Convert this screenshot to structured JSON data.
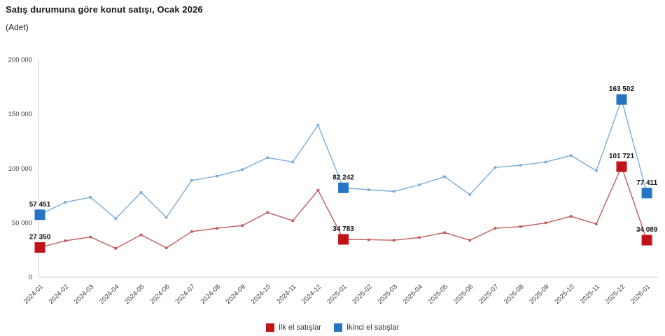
{
  "header": {
    "title": "Satış durumuna göre konut satışı, Ocak 2026",
    "subtitle": "(Adet)"
  },
  "colors": {
    "first_hand_line": "#c25b5b",
    "first_hand_marker": "#bf1317",
    "second_hand_line": "#7bacd9",
    "second_hand_marker": "#2575c4",
    "axis_line": "#d0d0d0",
    "tick_text": "#3a3a3a",
    "data_label_text": "#111111"
  },
  "legend": {
    "items": [
      {
        "label": "İlk el satışlar",
        "color": "#bf1317"
      },
      {
        "label": "İkinci el satışlar",
        "color": "#2575c4"
      }
    ]
  },
  "chart_data": {
    "type": "line",
    "title": "Satış durumuna göre konut satışı, Ocak 2026",
    "ylabel": "Adet",
    "xlabel": "",
    "ylim": [
      0,
      200000
    ],
    "grid": false,
    "legend_position": "bottom",
    "ytick_values": [
      0,
      50000,
      100000,
      150000,
      200000
    ],
    "ytick_labels": [
      "0",
      "50 000",
      "100 000",
      "150 000",
      "200 000"
    ],
    "categories": [
      "2024-01",
      "2024-02",
      "2024-03",
      "2024-04",
      "2024-05",
      "2024-06",
      "2024-07",
      "2024-08",
      "2024-09",
      "2024-10",
      "2024-11",
      "2024-12",
      "2025-01",
      "2025-02",
      "2025-03",
      "2025-04",
      "2025-05",
      "2025-06",
      "2025-07",
      "2025-08",
      "2025-09",
      "2025-10",
      "2025-11",
      "2025-12",
      "2026-01"
    ],
    "labeled_indices": [
      0,
      12,
      23,
      24
    ],
    "series": [
      {
        "name": "İlk el satışlar",
        "line_color": "#c25b5b",
        "marker_color": "#bf1317",
        "values": [
          27350,
          33500,
          37000,
          26500,
          39000,
          27000,
          42000,
          45000,
          47500,
          59500,
          52000,
          80000,
          34783,
          34500,
          34000,
          36500,
          41000,
          34000,
          45000,
          46500,
          50000,
          56000,
          49000,
          101721,
          34089
        ],
        "labeled_values": [
          "27 350",
          "34 783",
          "101 721",
          "34 089"
        ]
      },
      {
        "name": "İkinci el satışlar",
        "line_color": "#7bacd9",
        "marker_color": "#2575c4",
        "values": [
          57451,
          69000,
          73500,
          54000,
          78000,
          55000,
          89000,
          93000,
          99000,
          110000,
          106000,
          140000,
          82242,
          80500,
          79000,
          85000,
          92500,
          76000,
          101000,
          103000,
          106000,
          112000,
          98000,
          163502,
          77411
        ],
        "labeled_values": [
          "57 451",
          "82 242",
          "163 502",
          "77 411"
        ]
      }
    ]
  }
}
